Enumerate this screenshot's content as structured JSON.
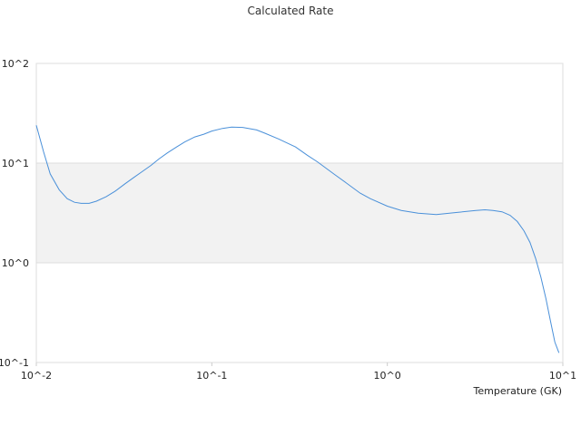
{
  "chart_data": {
    "type": "line",
    "title": "Calculated Rate",
    "xlabel": "Temperature (GK)",
    "ylabel": "",
    "x_scale": "log",
    "y_scale": "log",
    "xlim": [
      0.01,
      10
    ],
    "ylim": [
      0.1,
      100
    ],
    "x_ticks": [
      0.01,
      0.1,
      1,
      10
    ],
    "y_ticks": [
      0.1,
      1,
      10,
      100
    ],
    "x_tick_labels": [
      "10^-2",
      "10^-1",
      "10^0",
      "10^1"
    ],
    "y_tick_labels": [
      "10^-1",
      "10^0",
      "10^1",
      "10^2"
    ],
    "grid": true,
    "shaded_band": [
      1,
      10
    ],
    "series": [
      {
        "color": "#4a90d9",
        "x": [
          0.01,
          0.011,
          0.012,
          0.0135,
          0.015,
          0.0165,
          0.018,
          0.02,
          0.022,
          0.025,
          0.028,
          0.032,
          0.036,
          0.04,
          0.045,
          0.05,
          0.056,
          0.063,
          0.07,
          0.08,
          0.09,
          0.1,
          0.115,
          0.13,
          0.15,
          0.18,
          0.2,
          0.24,
          0.3,
          0.35,
          0.4,
          0.5,
          0.6,
          0.7,
          0.8,
          1.0,
          1.2,
          1.5,
          1.9,
          2.5,
          3.2,
          3.6,
          4.0,
          4.5,
          5.0,
          5.5,
          6.0,
          6.5,
          7.0,
          7.5,
          8.0,
          8.5,
          9.0,
          9.5
        ],
        "values": [
          24.0,
          13.0,
          7.8,
          5.4,
          4.4,
          4.05,
          3.95,
          3.95,
          4.15,
          4.6,
          5.2,
          6.2,
          7.2,
          8.2,
          9.5,
          11.0,
          12.7,
          14.5,
          16.3,
          18.3,
          19.5,
          21.0,
          22.3,
          23.0,
          22.8,
          21.5,
          20.0,
          17.5,
          14.5,
          12.0,
          10.3,
          7.7,
          6.1,
          5.0,
          4.4,
          3.7,
          3.35,
          3.15,
          3.05,
          3.2,
          3.35,
          3.4,
          3.35,
          3.25,
          3.0,
          2.6,
          2.1,
          1.6,
          1.1,
          0.72,
          0.44,
          0.26,
          0.16,
          0.125
        ]
      }
    ]
  }
}
